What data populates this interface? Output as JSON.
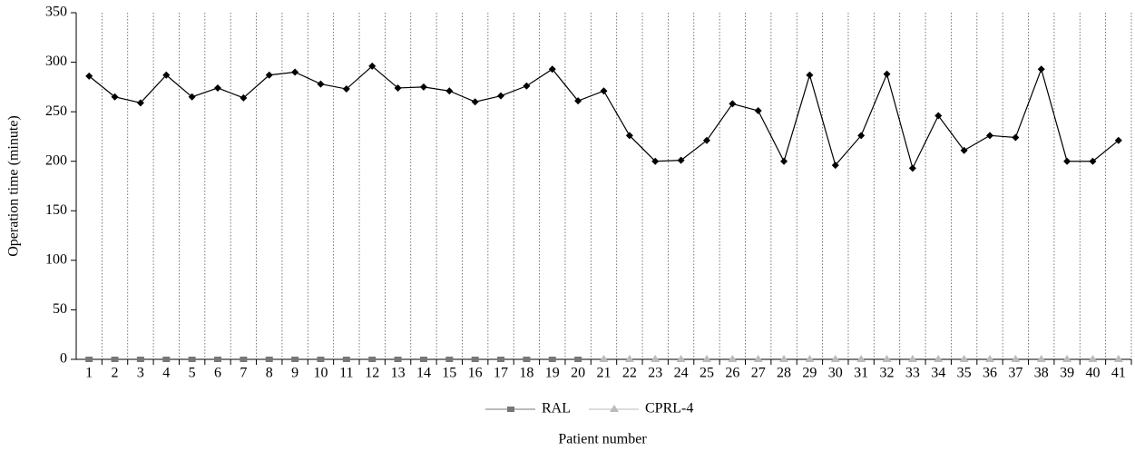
{
  "chart_data": {
    "type": "line",
    "y_label": "Operation time (minute)",
    "x_label": "Patient number",
    "categories": [
      "1",
      "2",
      "3",
      "4",
      "5",
      "6",
      "7",
      "8",
      "9",
      "10",
      "11",
      "12",
      "13",
      "14",
      "15",
      "16",
      "17",
      "18",
      "19",
      "20",
      "21",
      "22",
      "23",
      "24",
      "25",
      "26",
      "27",
      "28",
      "29",
      "30",
      "31",
      "32",
      "33",
      "34",
      "35",
      "36",
      "37",
      "38",
      "39",
      "40",
      "41"
    ],
    "series": [
      {
        "color": "#000000",
        "marker": "diamond",
        "values": [
          286,
          265,
          259,
          287,
          265,
          274,
          264,
          287,
          290,
          278,
          273,
          296,
          274,
          275,
          271,
          260,
          266,
          276,
          293,
          261,
          271,
          226,
          200,
          201,
          221,
          258,
          251,
          200,
          287,
          196,
          226,
          288,
          193,
          246,
          211,
          226,
          224,
          293,
          200,
          200,
          221
        ]
      },
      {
        "name": "RAL",
        "color": "#777777",
        "marker": "square",
        "values": [
          0,
          0,
          0,
          0,
          0,
          0,
          0,
          0,
          0,
          0,
          0,
          0,
          0,
          0,
          0,
          0,
          0,
          0,
          0,
          0,
          null,
          null,
          null,
          null,
          null,
          null,
          null,
          null,
          null,
          null,
          null,
          null,
          null,
          null,
          null,
          null,
          null,
          null,
          null,
          null,
          null
        ]
      },
      {
        "name": "CPRL-4",
        "color": "#bbbbbb",
        "marker": "triangle",
        "values": [
          null,
          null,
          null,
          null,
          null,
          null,
          null,
          null,
          null,
          null,
          null,
          null,
          null,
          null,
          null,
          null,
          null,
          null,
          null,
          null,
          0,
          0,
          0,
          0,
          0,
          0,
          0,
          0,
          0,
          0,
          0,
          0,
          0,
          0,
          0,
          0,
          0,
          0,
          0,
          0,
          0
        ]
      }
    ],
    "ylim": [
      0,
      350
    ],
    "yticks": [
      0,
      50,
      100,
      150,
      200,
      250,
      300,
      350
    ],
    "category_dividers": "dotted"
  }
}
